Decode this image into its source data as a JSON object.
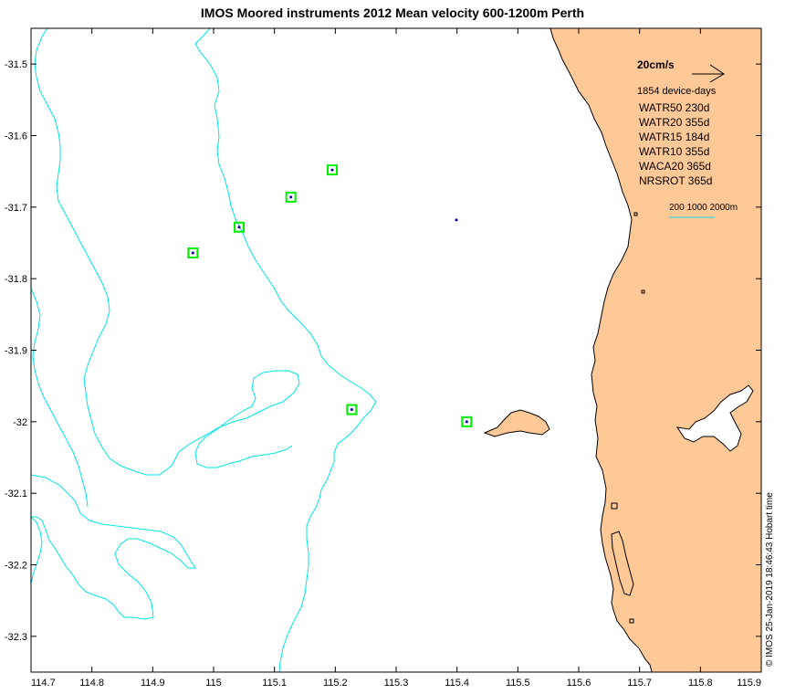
{
  "chart_data": {
    "type": "map",
    "title": "IMOS Moored instruments 2012 Mean velocity 600-1200m Perth",
    "xlim": [
      114.7,
      115.9
    ],
    "ylim": [
      -32.35,
      -31.45
    ],
    "x_ticks": [
      114.7,
      114.8,
      114.9,
      115,
      115.1,
      115.2,
      115.3,
      115.4,
      115.5,
      115.6,
      115.7,
      115.8,
      115.9
    ],
    "x_tick_labels": [
      "114.7",
      "114.8",
      "114.9",
      "115",
      "115.1",
      "115.2",
      "115.3",
      "115.4",
      "115.5",
      "115.6",
      "115.7",
      "115.8",
      "115.9"
    ],
    "y_ticks": [
      -31.5,
      -31.6,
      -31.7,
      -31.8,
      -31.9,
      -32,
      -32.1,
      -32.2,
      -32.3
    ],
    "y_tick_labels": [
      "-31.5",
      "-31.6",
      "-31.7",
      "-31.8",
      "-31.9",
      "-32",
      "-32.1",
      "-32.2",
      "-32.3"
    ],
    "moorings": [
      {
        "lon": 114.966,
        "lat": -31.764
      },
      {
        "lon": 115.042,
        "lat": -31.728
      },
      {
        "lon": 115.127,
        "lat": -31.686
      },
      {
        "lon": 115.195,
        "lat": -31.648
      },
      {
        "lon": 115.227,
        "lat": -31.983
      },
      {
        "lon": 115.416,
        "lat": -32.0
      }
    ],
    "extra_point": {
      "lon": 115.399,
      "lat": -31.718
    },
    "legend": {
      "reference_speed": "20cm/s",
      "device_days": "1854 device-days",
      "entries": [
        "WATR50 230d",
        "WATR20 355d",
        "WATR15 184d",
        "WATR10 355d",
        "WACA20 365d",
        "NRSROT 365d"
      ],
      "isobaths_label": "200 1000 2000m"
    },
    "credit": "© IMOS 25-Jan-2019 18:46:43 Hobart time",
    "colors": {
      "land": "#ffc897",
      "isobath": "#00e5e5",
      "mooring_box": "#00ee00",
      "mooring_dot": "#0000aa",
      "coast": "#000000"
    }
  }
}
